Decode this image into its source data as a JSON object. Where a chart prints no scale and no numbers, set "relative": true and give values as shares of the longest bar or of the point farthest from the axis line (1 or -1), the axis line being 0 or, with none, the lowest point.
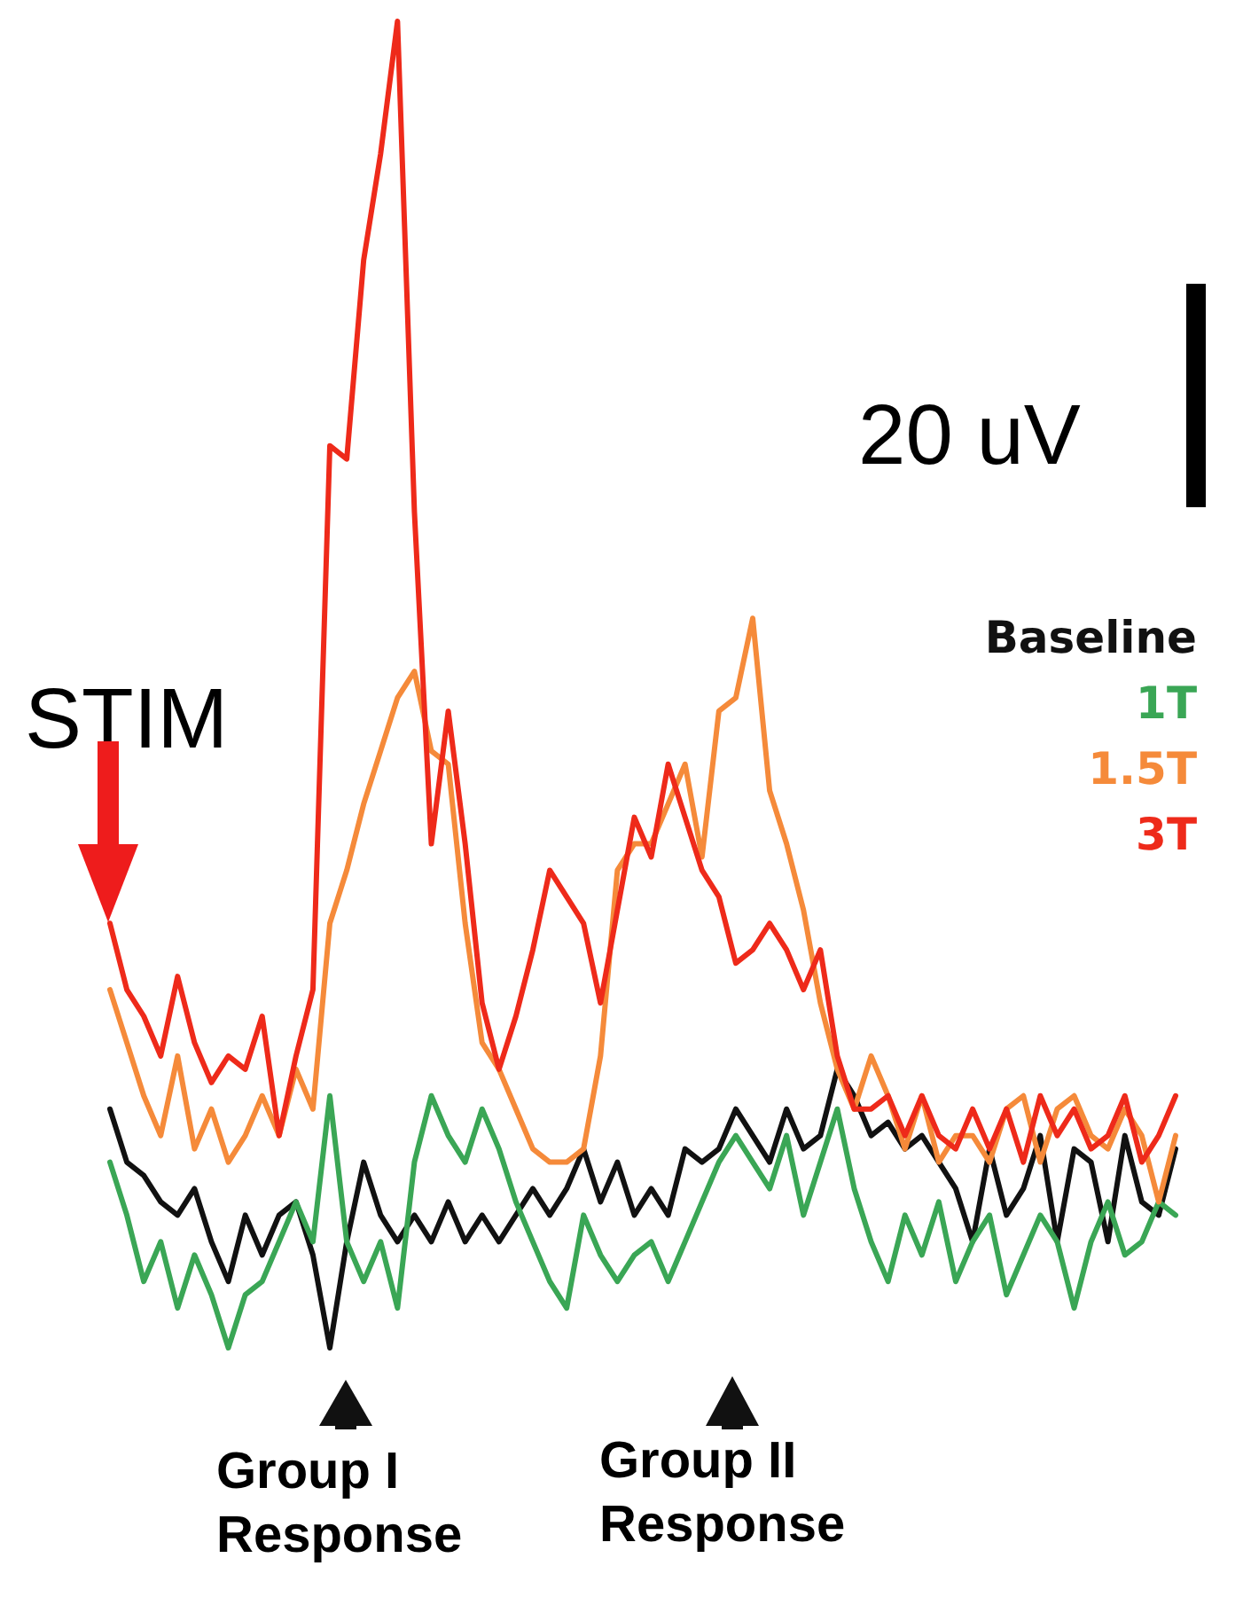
{
  "chart_data": {
    "type": "line",
    "relative": true,
    "legend": "right",
    "marker": "none",
    "line_style": "solid",
    "tick_labels": false,
    "annotations": [
      "STIM",
      "20 uV",
      "Group I Response",
      "Group II Response"
    ],
    "categories": [
      null,
      null,
      null,
      null,
      null,
      null,
      null,
      null,
      null,
      null,
      null,
      null,
      null,
      null,
      null,
      null,
      null,
      null,
      null,
      null,
      null,
      null,
      null,
      null,
      null,
      null,
      null,
      null,
      null,
      null,
      null,
      null,
      null,
      null,
      null,
      null,
      null,
      null,
      null,
      null,
      null,
      null,
      null,
      null,
      null,
      null,
      null,
      null,
      null,
      null,
      null,
      null,
      null,
      null,
      null,
      null,
      null,
      null,
      null,
      null,
      null,
      null,
      null,
      null
    ],
    "series": [
      {
        "name": "Baseline",
        "color": "#111111",
        "values": [
          0.18,
          0.14,
          0.13,
          0.11,
          0.1,
          0.12,
          0.08,
          0.05,
          0.1,
          0.07,
          0.1,
          0.11,
          0.07,
          0,
          0.08,
          0.14,
          0.1,
          0.08,
          0.1,
          0.08,
          0.11,
          0.08,
          0.1,
          0.08,
          0.1,
          0.12,
          0.1,
          0.12,
          0.15,
          0.11,
          0.14,
          0.1,
          0.12,
          0.1,
          0.15,
          0.14,
          0.15,
          0.18,
          0.16,
          0.14,
          0.18,
          0.15,
          0.16,
          0.21,
          0.19,
          0.16,
          0.17,
          0.15,
          0.16,
          0.14,
          0.12,
          0.08,
          0.15,
          0.1,
          0.12,
          0.16,
          0.08,
          0.15,
          0.14,
          0.08,
          0.16,
          0.11,
          0.1,
          0.15
        ]
      },
      {
        "name": "1T",
        "color": "#3aa655",
        "values": [
          0.14,
          0.1,
          0.05,
          0.08,
          0.03,
          0.07,
          0.04,
          0,
          0.04,
          0.05,
          0.08,
          0.11,
          0.08,
          0.19,
          0.08,
          0.05,
          0.08,
          0.03,
          0.14,
          0.19,
          0.16,
          0.14,
          0.18,
          0.15,
          0.11,
          0.08,
          0.05,
          0.03,
          0.1,
          0.07,
          0.05,
          0.07,
          0.08,
          0.05,
          0.08,
          0.11,
          0.14,
          0.16,
          0.14,
          0.12,
          0.16,
          0.1,
          0.14,
          0.18,
          0.12,
          0.08,
          0.05,
          0.1,
          0.07,
          0.11,
          0.05,
          0.08,
          0.1,
          0.04,
          0.07,
          0.1,
          0.08,
          0.03,
          0.08,
          0.11,
          0.07,
          0.08,
          0.11,
          0.1
        ]
      },
      {
        "name": "1.5T",
        "color": "#f58a3a",
        "values": [
          0.27,
          0.23,
          0.19,
          0.16,
          0.22,
          0.15,
          0.18,
          0.14,
          0.16,
          0.19,
          0.16,
          0.21,
          0.18,
          0.32,
          0.36,
          0.41,
          0.45,
          0.49,
          0.51,
          0.45,
          0.44,
          0.32,
          0.23,
          0.21,
          0.18,
          0.15,
          0.14,
          0.14,
          0.15,
          0.22,
          0.36,
          0.38,
          0.38,
          0.41,
          0.44,
          0.37,
          0.48,
          0.49,
          0.55,
          0.42,
          0.38,
          0.33,
          0.26,
          0.21,
          0.18,
          0.22,
          0.19,
          0.15,
          0.19,
          0.14,
          0.16,
          0.16,
          0.14,
          0.18,
          0.19,
          0.14,
          0.18,
          0.19,
          0.16,
          0.15,
          0.18,
          0.16,
          0.11,
          0.16
        ]
      },
      {
        "name": "3T",
        "color": "#ee2a1a",
        "values": [
          0.32,
          0.27,
          0.25,
          0.22,
          0.28,
          0.23,
          0.2,
          0.22,
          0.21,
          0.25,
          0.16,
          0.22,
          0.27,
          0.68,
          0.67,
          0.82,
          0.9,
          1,
          0.63,
          0.38,
          0.48,
          0.38,
          0.26,
          0.21,
          0.25,
          0.3,
          0.36,
          0.34,
          0.32,
          0.26,
          0.33,
          0.4,
          0.37,
          0.44,
          0.4,
          0.36,
          0.34,
          0.29,
          0.3,
          0.32,
          0.3,
          0.27,
          0.3,
          0.22,
          0.18,
          0.18,
          0.19,
          0.16,
          0.19,
          0.16,
          0.15,
          0.18,
          0.15,
          0.18,
          0.14,
          0.19,
          0.16,
          0.18,
          0.15,
          0.16,
          0.19,
          0.14,
          0.16,
          0.19
        ]
      }
    ]
  }
}
